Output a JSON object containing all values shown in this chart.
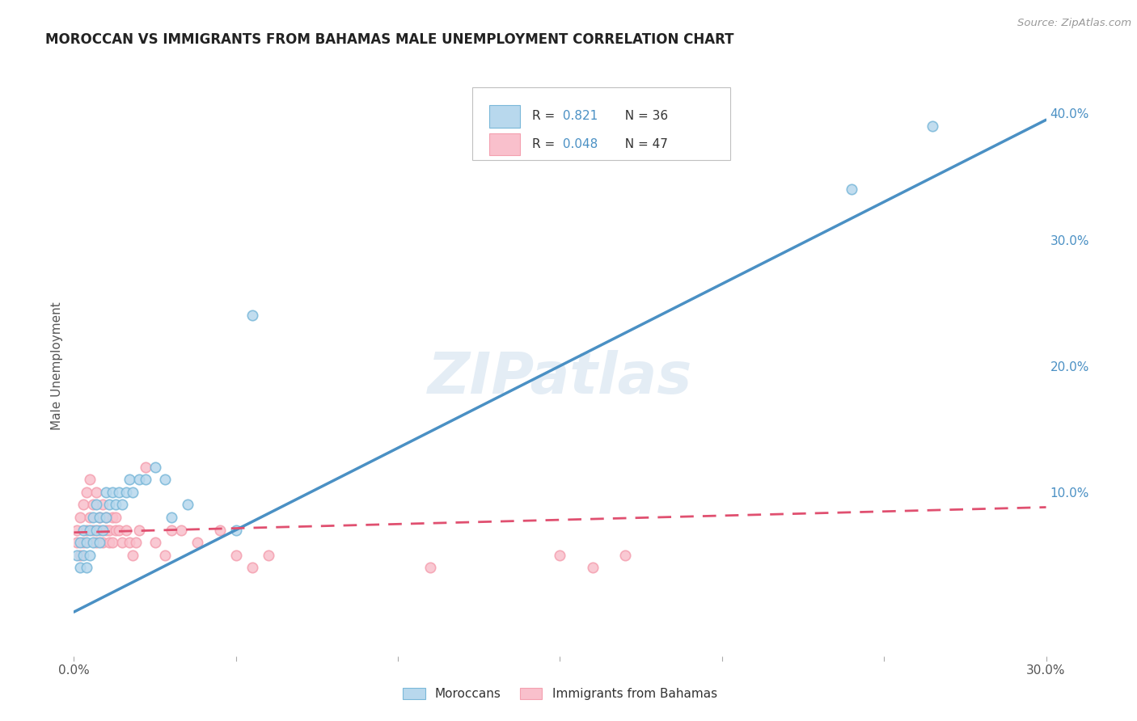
{
  "title": "MOROCCAN VS IMMIGRANTS FROM BAHAMAS MALE UNEMPLOYMENT CORRELATION CHART",
  "source": "Source: ZipAtlas.com",
  "ylabel": "Male Unemployment",
  "xlim": [
    0.0,
    0.3
  ],
  "ylim": [
    -0.03,
    0.43
  ],
  "xticks": [
    0.0,
    0.05,
    0.1,
    0.15,
    0.2,
    0.25,
    0.3
  ],
  "yticks_right": [
    0.0,
    0.1,
    0.2,
    0.3,
    0.4
  ],
  "legend1_R": "0.821",
  "legend1_N": "36",
  "legend2_R": "0.048",
  "legend2_N": "47",
  "blue_color": "#7ab8d9",
  "pink_color": "#f4a0b0",
  "blue_fill": "#b8d8ed",
  "pink_fill": "#f9c0cc",
  "line_blue": "#4a90c4",
  "line_pink": "#e05070",
  "watermark": "ZIPatlas",
  "blue_scatter_x": [
    0.001,
    0.002,
    0.002,
    0.003,
    0.003,
    0.004,
    0.004,
    0.005,
    0.005,
    0.006,
    0.006,
    0.007,
    0.007,
    0.008,
    0.008,
    0.009,
    0.01,
    0.01,
    0.011,
    0.012,
    0.013,
    0.014,
    0.015,
    0.016,
    0.017,
    0.018,
    0.02,
    0.022,
    0.025,
    0.028,
    0.03,
    0.035,
    0.05,
    0.055,
    0.24,
    0.265
  ],
  "blue_scatter_y": [
    0.05,
    0.04,
    0.06,
    0.05,
    0.07,
    0.04,
    0.06,
    0.05,
    0.07,
    0.06,
    0.08,
    0.07,
    0.09,
    0.06,
    0.08,
    0.07,
    0.08,
    0.1,
    0.09,
    0.1,
    0.09,
    0.1,
    0.09,
    0.1,
    0.11,
    0.1,
    0.11,
    0.11,
    0.12,
    0.11,
    0.08,
    0.09,
    0.07,
    0.24,
    0.34,
    0.39
  ],
  "pink_scatter_x": [
    0.001,
    0.001,
    0.002,
    0.002,
    0.003,
    0.003,
    0.004,
    0.004,
    0.005,
    0.005,
    0.006,
    0.006,
    0.007,
    0.007,
    0.008,
    0.008,
    0.009,
    0.009,
    0.01,
    0.01,
    0.011,
    0.011,
    0.012,
    0.012,
    0.013,
    0.013,
    0.014,
    0.015,
    0.016,
    0.017,
    0.018,
    0.019,
    0.02,
    0.022,
    0.025,
    0.028,
    0.03,
    0.033,
    0.038,
    0.045,
    0.05,
    0.055,
    0.06,
    0.11,
    0.15,
    0.16,
    0.17
  ],
  "pink_scatter_y": [
    0.06,
    0.07,
    0.05,
    0.08,
    0.06,
    0.09,
    0.07,
    0.1,
    0.08,
    0.11,
    0.07,
    0.09,
    0.06,
    0.1,
    0.07,
    0.08,
    0.06,
    0.09,
    0.07,
    0.08,
    0.06,
    0.07,
    0.06,
    0.08,
    0.07,
    0.08,
    0.07,
    0.06,
    0.07,
    0.06,
    0.05,
    0.06,
    0.07,
    0.12,
    0.06,
    0.05,
    0.07,
    0.07,
    0.06,
    0.07,
    0.05,
    0.04,
    0.05,
    0.04,
    0.05,
    0.04,
    0.05
  ],
  "blue_line_x": [
    0.0,
    0.3
  ],
  "blue_line_y": [
    0.005,
    0.395
  ],
  "pink_line_x": [
    0.0,
    0.3
  ],
  "pink_line_y": [
    0.068,
    0.088
  ],
  "background_color": "#ffffff",
  "grid_color": "#c8c8c8",
  "title_color": "#222222",
  "source_color": "#999999",
  "label_color": "#555555"
}
